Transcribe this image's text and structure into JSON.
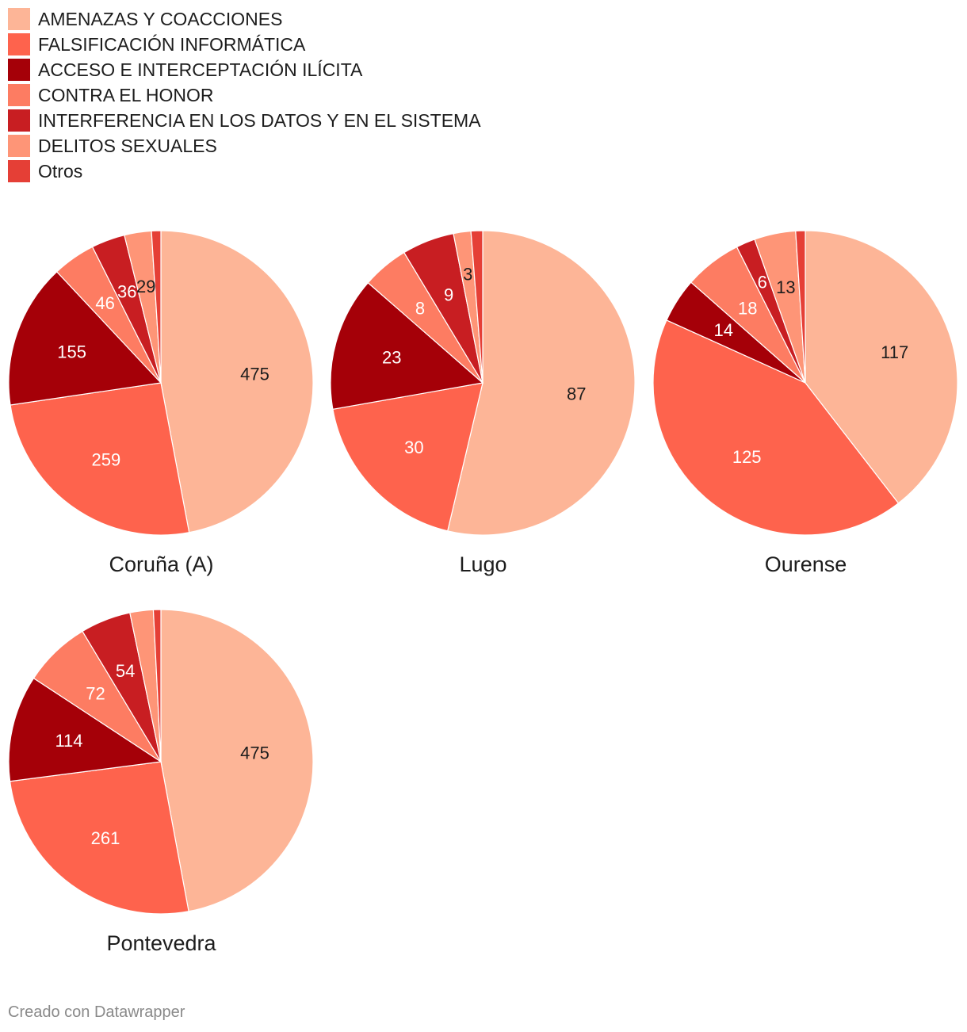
{
  "legend": {
    "items": [
      {
        "label": "AMENAZAS Y COACCIONES",
        "color": "#fdb597"
      },
      {
        "label": "FALSIFICACIÓN INFORMÁTICA",
        "color": "#fe634d"
      },
      {
        "label": "ACCESO E INTERCEPTACIÓN ILÍCITA",
        "color": "#a50008"
      },
      {
        "label": "CONTRA EL HONOR",
        "color": "#fd7c62"
      },
      {
        "label": "INTERFERENCIA EN LOS DATOS Y EN EL SISTEMA",
        "color": "#c81e22"
      },
      {
        "label": "DELITOS SEXUALES",
        "color": "#fe9577"
      },
      {
        "label": "Otros",
        "color": "#e53f36"
      }
    ]
  },
  "chart_data": {
    "type": "pie",
    "categories": [
      "AMENAZAS Y COACCIONES",
      "FALSIFICACIÓN INFORMÁTICA",
      "ACCESO E INTERCEPTACIÓN ILÍCITA",
      "CONTRA EL HONOR",
      "INTERFERENCIA EN LOS DATOS Y EN EL SISTEMA",
      "DELITOS SEXUALES",
      "Otros"
    ],
    "colors": [
      "#fdb597",
      "#fe634d",
      "#a50008",
      "#fd7c62",
      "#c81e22",
      "#fe9577",
      "#e53f36"
    ],
    "label_colors": [
      "#1d1d1d",
      "#ffffff",
      "#ffffff",
      "#ffffff",
      "#ffffff",
      "#1d1d1d",
      "#ffffff"
    ],
    "pies": [
      {
        "title": "Coruña (A)",
        "values": [
          475,
          259,
          155,
          46,
          36,
          29,
          10
        ],
        "labels": [
          "475",
          "259",
          "155",
          "46",
          "36",
          "29",
          ""
        ]
      },
      {
        "title": "Lugo",
        "values": [
          87,
          30,
          23,
          8,
          9,
          3,
          2
        ],
        "labels": [
          "87",
          "30",
          "23",
          "8",
          "9",
          "3",
          ""
        ]
      },
      {
        "title": "Ourense",
        "values": [
          117,
          125,
          14,
          18,
          6,
          13,
          3
        ],
        "labels": [
          "117",
          "125",
          "14",
          "18",
          "6",
          "13",
          ""
        ]
      },
      {
        "title": "Pontevedra",
        "values": [
          475,
          261,
          114,
          72,
          54,
          25,
          8
        ],
        "labels": [
          "475",
          "261",
          "114",
          "72",
          "54",
          "",
          ""
        ]
      }
    ]
  },
  "footer": {
    "text": "Creado con Datawrapper"
  }
}
